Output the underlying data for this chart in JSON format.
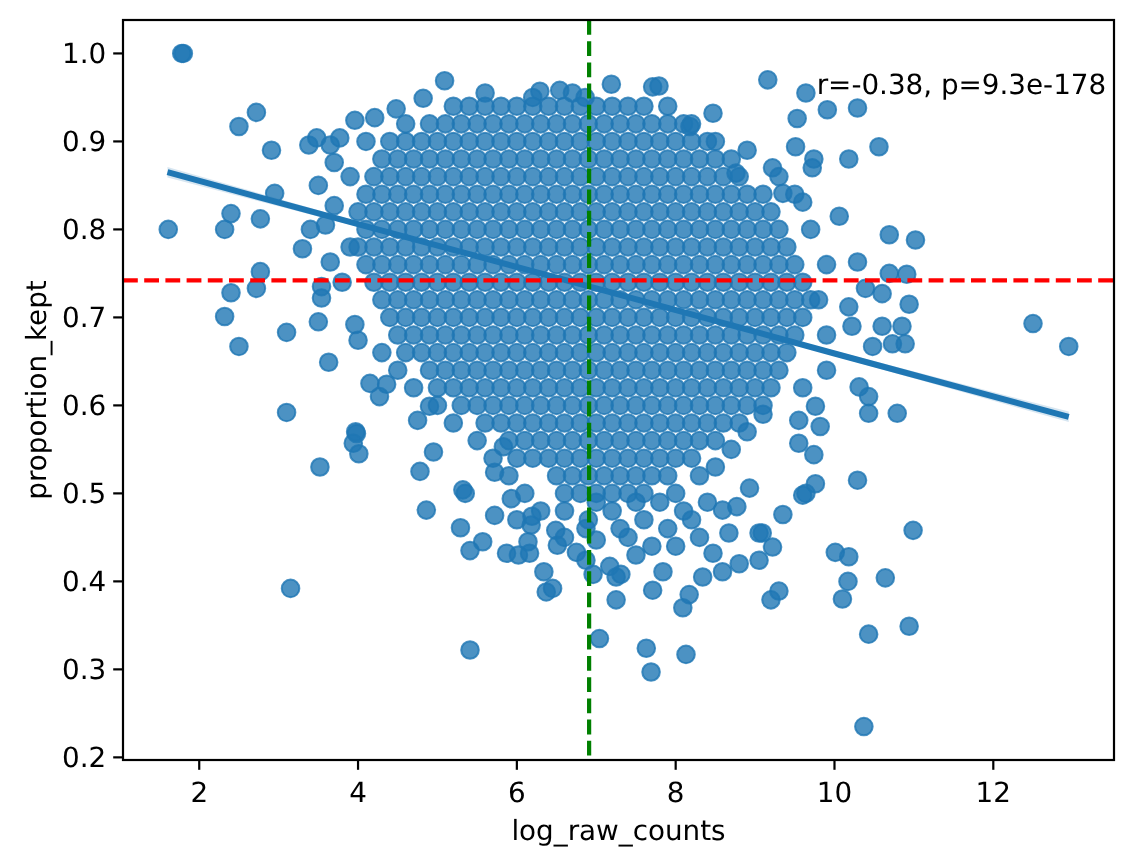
{
  "chart_data": {
    "type": "scatter",
    "xlabel": "log_raw_counts",
    "ylabel": "proportion_kept",
    "xlim": [
      1.04,
      13.52
    ],
    "ylim": [
      0.197,
      1.038
    ],
    "xticks": [
      2,
      4,
      6,
      8,
      10,
      12
    ],
    "yticks": [
      0.2,
      0.3,
      0.4,
      0.5,
      0.6,
      0.7,
      0.8,
      0.9,
      {
        "value": 1,
        "label": "1.0"
      }
    ],
    "annotations": [
      "r=-0.38, p=9.3e-178"
    ],
    "ref_lines": [
      {
        "axis": "y",
        "value": 0.742,
        "color": "#ff0000",
        "line_style": "dashed"
      },
      {
        "axis": "x",
        "value": 6.91,
        "color": "#008000",
        "line_style": "dashed"
      }
    ],
    "series": [
      {
        "color": "#1f77b4",
        "marker": "circle",
        "x": [
          5.4,
          5.6,
          5.8,
          6,
          6.2,
          6.4,
          6.6,
          6.8,
          7,
          7.2,
          7.4,
          7.6,
          4.9,
          5.1,
          5.3,
          5.5,
          5.7,
          5.9,
          6.1,
          6.3,
          6.5,
          6.7,
          6.9,
          7.1,
          7.3,
          7.5,
          7.7,
          7.9,
          8.1,
          4.4,
          4.6,
          4.8,
          5,
          5.2,
          5.4,
          5.6,
          5.8,
          6,
          6.2,
          6.4,
          6.6,
          6.8,
          7,
          7.2,
          7.4,
          7.6,
          7.8,
          8,
          8.2,
          8.4,
          4.3,
          4.5,
          4.7,
          4.9,
          5.1,
          5.3,
          5.5,
          5.7,
          5.9,
          6.1,
          6.3,
          6.5,
          6.7,
          6.9,
          7.1,
          7.3,
          7.5,
          7.7,
          7.9,
          8.1,
          8.3,
          8.5,
          8.7,
          4.2,
          4.4,
          4.6,
          4.8,
          5,
          5.2,
          5.4,
          5.6,
          5.8,
          6,
          6.2,
          6.4,
          6.6,
          6.8,
          7,
          7.2,
          7.4,
          7.6,
          7.8,
          8,
          8.2,
          8.4,
          8.6,
          8.8,
          4.1,
          4.3,
          4.5,
          4.7,
          4.9,
          5.1,
          5.3,
          5.5,
          5.7,
          5.9,
          6.1,
          6.3,
          6.5,
          6.7,
          6.9,
          7.1,
          7.3,
          7.5,
          7.7,
          7.9,
          8.1,
          8.3,
          8.5,
          8.7,
          8.9,
          9.1,
          4,
          4.2,
          4.4,
          4.6,
          4.8,
          5,
          5.2,
          5.4,
          5.6,
          5.8,
          6,
          6.2,
          6.4,
          6.6,
          6.8,
          7,
          7.2,
          7.4,
          7.6,
          7.8,
          8,
          8.2,
          8.4,
          8.6,
          8.8,
          9,
          9.2,
          4.1,
          4.3,
          4.5,
          4.7,
          4.9,
          5.1,
          5.3,
          5.5,
          5.7,
          5.9,
          6.1,
          6.3,
          6.5,
          6.7,
          6.9,
          7.1,
          7.3,
          7.5,
          7.7,
          7.9,
          8.1,
          8.3,
          8.5,
          8.7,
          8.9,
          9.1,
          9.3,
          4,
          4.2,
          4.4,
          4.6,
          4.8,
          5,
          5.2,
          5.4,
          5.6,
          5.8,
          6,
          6.2,
          6.4,
          6.6,
          6.8,
          7,
          7.2,
          7.4,
          7.6,
          7.8,
          8,
          8.2,
          8.4,
          8.6,
          8.8,
          9,
          9.2,
          9.4,
          4.1,
          4.3,
          4.5,
          4.7,
          4.9,
          5.1,
          5.3,
          5.5,
          5.7,
          5.9,
          6.1,
          6.3,
          6.5,
          6.7,
          6.9,
          7.1,
          7.3,
          7.5,
          7.7,
          7.9,
          8.1,
          8.3,
          8.5,
          8.7,
          8.9,
          9.1,
          9.3,
          9.5,
          4.2,
          4.4,
          4.6,
          4.8,
          5,
          5.2,
          5.4,
          5.6,
          5.8,
          6,
          6.2,
          6.4,
          6.6,
          6.8,
          7,
          7.2,
          7.4,
          7.6,
          7.8,
          8,
          8.2,
          8.4,
          8.6,
          8.8,
          9,
          9.2,
          9.4,
          9.6,
          4.3,
          4.5,
          4.7,
          4.9,
          5.1,
          5.3,
          5.5,
          5.7,
          5.9,
          6.1,
          6.3,
          6.5,
          6.7,
          6.9,
          7.1,
          7.3,
          7.5,
          7.7,
          7.9,
          8.1,
          8.3,
          8.5,
          8.7,
          8.9,
          9.1,
          9.3,
          9.5,
          9.7,
          4.4,
          4.6,
          4.8,
          5,
          5.2,
          5.4,
          5.6,
          5.8,
          6,
          6.2,
          6.4,
          6.6,
          6.8,
          7,
          7.2,
          7.4,
          7.6,
          7.8,
          8,
          8.2,
          8.4,
          8.6,
          8.8,
          9,
          9.2,
          9.4,
          9.6,
          4.5,
          4.7,
          4.9,
          5.1,
          5.3,
          5.5,
          5.7,
          5.9,
          6.1,
          6.3,
          6.5,
          6.7,
          6.9,
          7.1,
          7.3,
          7.5,
          7.7,
          7.9,
          8.1,
          8.3,
          8.5,
          8.7,
          8.9,
          9.1,
          9.3,
          9.5,
          4.6,
          4.8,
          5,
          5.2,
          5.4,
          5.6,
          5.8,
          6,
          6.2,
          6.4,
          6.6,
          6.8,
          7,
          7.2,
          7.4,
          7.6,
          7.8,
          8,
          8.2,
          8.4,
          8.6,
          8.8,
          9,
          9.2,
          9.4,
          4.9,
          5.1,
          5.3,
          5.5,
          5.7,
          5.9,
          6.1,
          6.3,
          6.5,
          6.7,
          6.9,
          7.1,
          7.3,
          7.5,
          7.7,
          7.9,
          8.1,
          8.3,
          8.5,
          8.7,
          8.9,
          9.1,
          9.3,
          5,
          5.2,
          5.4,
          5.6,
          5.8,
          6,
          6.2,
          6.4,
          6.6,
          6.8,
          7,
          7.2,
          7.4,
          7.6,
          7.8,
          8,
          8.2,
          8.4,
          8.6,
          8.8,
          9,
          9.2,
          5.3,
          5.5,
          5.7,
          5.9,
          6.1,
          6.3,
          6.5,
          6.7,
          6.9,
          7.1,
          7.3,
          7.5,
          7.7,
          7.9,
          8.1,
          8.3,
          8.5,
          8.7,
          8.9,
          9.1,
          5.6,
          5.8,
          6,
          6.2,
          6.4,
          6.6,
          6.8,
          7,
          7.2,
          7.4,
          7.6,
          7.8,
          8,
          8.2,
          8.4,
          8.6,
          8.8,
          5.9,
          6.1,
          6.3,
          6.5,
          6.7,
          6.9,
          7.1,
          7.3,
          7.5,
          7.7,
          7.9,
          8.1,
          8.3,
          8.5,
          6.2,
          6.4,
          6.6,
          6.8,
          7,
          7.2,
          7.4,
          7.6,
          7.8,
          8,
          8.2,
          6.5,
          6.7,
          6.9,
          7.1,
          7.3,
          7.5,
          7.7,
          7.9,
          6.6,
          6.8,
          7,
          7.2,
          7.4,
          7.6,
          1.78,
          1.8,
          1.61,
          2.5,
          2.72,
          2.91,
          2.4,
          2.32,
          2.77,
          2.95,
          3.3,
          2.77,
          2.72,
          2.4,
          2.32,
          2.5,
          3.1,
          3.1,
          3.38,
          3.48,
          3.65,
          3.77,
          3.96,
          4.21,
          3.7,
          3.5,
          3.4,
          3.59,
          3.7,
          3.65,
          3.54,
          3.54,
          3.5,
          3.63,
          3.96,
          4,
          5.09,
          4.82,
          4.48,
          3.97,
          4.15,
          4.36,
          4.27,
          4.75,
          4.9,
          6.29,
          6.54,
          6.86,
          7.19,
          7.71,
          7.79,
          8.47,
          8.18,
          9.16,
          9.64,
          9.91,
          10.29,
          9.53,
          10.56,
          10.18,
          9.74,
          9.72,
          9.51,
          9.22,
          8.9,
          8.76,
          10.06,
          10.69,
          11.02,
          9.6,
          9.35,
          10.29,
          10.69,
          10.91,
          10.6,
          10.39,
          10.94,
          12.5,
          12.95,
          10.6,
          10.85,
          10.73,
          10.89,
          10.48,
          10.18,
          10.22,
          10.31,
          10.43,
          10.79,
          10.43,
          9.76,
          9.55,
          3.52,
          3.98,
          3.94,
          4.01,
          3.15,
          5.41,
          4.95,
          4.78,
          4.86,
          5.32,
          5.35,
          5.29,
          5.41,
          5.57,
          5.72,
          5.72,
          5.93,
          5.83,
          5.87,
          6.02,
          6.16,
          6.14,
          6.34,
          6.37,
          6.45,
          7.04,
          6.18,
          6.19,
          6.49,
          6.51,
          6.75,
          6.87,
          7,
          6.87,
          7.17,
          7.25,
          7.25,
          7.63,
          7.69,
          8.13,
          10.37,
          10.43,
          10.94,
          10.01,
          10.18,
          10.64,
          10.17,
          10.1,
          10.99,
          10.29,
          9.2,
          9.3,
          7.71,
          8.09,
          8.17,
          6.96,
          7.31,
          7.84,
          8.34,
          8.59,
          8.8,
          9.05,
          9.22,
          9.05,
          9.64,
          9.76,
          9.6,
          9.35,
          8.93,
          9.55,
          9.74,
          9.82,
          8.77,
          8.59,
          8.67,
          8.47,
          9.09,
          7.6,
          7.9,
          8.2,
          7.4,
          7.7,
          8,
          8.3,
          7.5,
          6.6,
          6.9,
          7.2,
          7,
          7.5,
          7.8,
          8,
          8.3,
          8.5,
          8.7,
          8.9,
          9.1,
          5.9,
          6.1,
          6.3,
          6,
          6.6,
          8.4,
          8.1,
          7.3,
          9.8,
          9.9,
          9.9,
          9.7,
          9.5,
          9.9,
          9.6,
          9.3,
          3.9,
          3.8,
          3.9,
          4.1,
          4.3,
          4.5,
          4.7,
          5,
          5.2,
          5.5,
          5.7,
          6,
          4.6,
          5.2,
          8.2,
          8.5,
          6.7,
          7.9,
          5.6,
          6.2
        ],
        "values": [
          0.94,
          0.94,
          0.94,
          0.94,
          0.94,
          0.94,
          0.94,
          0.94,
          0.94,
          0.94,
          0.94,
          0.94,
          0.92,
          0.92,
          0.92,
          0.92,
          0.92,
          0.92,
          0.92,
          0.92,
          0.92,
          0.92,
          0.92,
          0.92,
          0.92,
          0.92,
          0.92,
          0.92,
          0.92,
          0.9,
          0.9,
          0.9,
          0.9,
          0.9,
          0.9,
          0.9,
          0.9,
          0.9,
          0.9,
          0.9,
          0.9,
          0.9,
          0.9,
          0.9,
          0.9,
          0.9,
          0.9,
          0.9,
          0.9,
          0.9,
          0.88,
          0.88,
          0.88,
          0.88,
          0.88,
          0.88,
          0.88,
          0.88,
          0.88,
          0.88,
          0.88,
          0.88,
          0.88,
          0.88,
          0.88,
          0.88,
          0.88,
          0.88,
          0.88,
          0.88,
          0.88,
          0.88,
          0.88,
          0.86,
          0.86,
          0.86,
          0.86,
          0.86,
          0.86,
          0.86,
          0.86,
          0.86,
          0.86,
          0.86,
          0.86,
          0.86,
          0.86,
          0.86,
          0.86,
          0.86,
          0.86,
          0.86,
          0.86,
          0.86,
          0.86,
          0.86,
          0.86,
          0.84,
          0.84,
          0.84,
          0.84,
          0.84,
          0.84,
          0.84,
          0.84,
          0.84,
          0.84,
          0.84,
          0.84,
          0.84,
          0.84,
          0.84,
          0.84,
          0.84,
          0.84,
          0.84,
          0.84,
          0.84,
          0.84,
          0.84,
          0.84,
          0.84,
          0.84,
          0.82,
          0.82,
          0.82,
          0.82,
          0.82,
          0.82,
          0.82,
          0.82,
          0.82,
          0.82,
          0.82,
          0.82,
          0.82,
          0.82,
          0.82,
          0.82,
          0.82,
          0.82,
          0.82,
          0.82,
          0.82,
          0.82,
          0.82,
          0.82,
          0.82,
          0.82,
          0.82,
          0.8,
          0.8,
          0.8,
          0.8,
          0.8,
          0.8,
          0.8,
          0.8,
          0.8,
          0.8,
          0.8,
          0.8,
          0.8,
          0.8,
          0.8,
          0.8,
          0.8,
          0.8,
          0.8,
          0.8,
          0.8,
          0.8,
          0.8,
          0.8,
          0.8,
          0.8,
          0.8,
          0.78,
          0.78,
          0.78,
          0.78,
          0.78,
          0.78,
          0.78,
          0.78,
          0.78,
          0.78,
          0.78,
          0.78,
          0.78,
          0.78,
          0.78,
          0.78,
          0.78,
          0.78,
          0.78,
          0.78,
          0.78,
          0.78,
          0.78,
          0.78,
          0.78,
          0.78,
          0.78,
          0.78,
          0.76,
          0.76,
          0.76,
          0.76,
          0.76,
          0.76,
          0.76,
          0.76,
          0.76,
          0.76,
          0.76,
          0.76,
          0.76,
          0.76,
          0.76,
          0.76,
          0.76,
          0.76,
          0.76,
          0.76,
          0.76,
          0.76,
          0.76,
          0.76,
          0.76,
          0.76,
          0.76,
          0.76,
          0.74,
          0.74,
          0.74,
          0.74,
          0.74,
          0.74,
          0.74,
          0.74,
          0.74,
          0.74,
          0.74,
          0.74,
          0.74,
          0.74,
          0.74,
          0.74,
          0.74,
          0.74,
          0.74,
          0.74,
          0.74,
          0.74,
          0.74,
          0.74,
          0.74,
          0.74,
          0.74,
          0.74,
          0.72,
          0.72,
          0.72,
          0.72,
          0.72,
          0.72,
          0.72,
          0.72,
          0.72,
          0.72,
          0.72,
          0.72,
          0.72,
          0.72,
          0.72,
          0.72,
          0.72,
          0.72,
          0.72,
          0.72,
          0.72,
          0.72,
          0.72,
          0.72,
          0.72,
          0.72,
          0.72,
          0.72,
          0.7,
          0.7,
          0.7,
          0.7,
          0.7,
          0.7,
          0.7,
          0.7,
          0.7,
          0.7,
          0.7,
          0.7,
          0.7,
          0.7,
          0.7,
          0.7,
          0.7,
          0.7,
          0.7,
          0.7,
          0.7,
          0.7,
          0.7,
          0.7,
          0.7,
          0.7,
          0.7,
          0.68,
          0.68,
          0.68,
          0.68,
          0.68,
          0.68,
          0.68,
          0.68,
          0.68,
          0.68,
          0.68,
          0.68,
          0.68,
          0.68,
          0.68,
          0.68,
          0.68,
          0.68,
          0.68,
          0.68,
          0.68,
          0.68,
          0.68,
          0.68,
          0.68,
          0.68,
          0.66,
          0.66,
          0.66,
          0.66,
          0.66,
          0.66,
          0.66,
          0.66,
          0.66,
          0.66,
          0.66,
          0.66,
          0.66,
          0.66,
          0.66,
          0.66,
          0.66,
          0.66,
          0.66,
          0.66,
          0.66,
          0.66,
          0.66,
          0.66,
          0.66,
          0.64,
          0.64,
          0.64,
          0.64,
          0.64,
          0.64,
          0.64,
          0.64,
          0.64,
          0.64,
          0.64,
          0.64,
          0.64,
          0.64,
          0.64,
          0.64,
          0.64,
          0.64,
          0.64,
          0.64,
          0.64,
          0.64,
          0.64,
          0.62,
          0.62,
          0.62,
          0.62,
          0.62,
          0.62,
          0.62,
          0.62,
          0.62,
          0.62,
          0.62,
          0.62,
          0.62,
          0.62,
          0.62,
          0.62,
          0.62,
          0.62,
          0.62,
          0.62,
          0.62,
          0.62,
          0.6,
          0.6,
          0.6,
          0.6,
          0.6,
          0.6,
          0.6,
          0.6,
          0.6,
          0.6,
          0.6,
          0.6,
          0.6,
          0.6,
          0.6,
          0.6,
          0.6,
          0.6,
          0.6,
          0.6,
          0.58,
          0.58,
          0.58,
          0.58,
          0.58,
          0.58,
          0.58,
          0.58,
          0.58,
          0.58,
          0.58,
          0.58,
          0.58,
          0.58,
          0.58,
          0.58,
          0.58,
          0.56,
          0.56,
          0.56,
          0.56,
          0.56,
          0.56,
          0.56,
          0.56,
          0.56,
          0.56,
          0.56,
          0.56,
          0.56,
          0.56,
          0.54,
          0.54,
          0.54,
          0.54,
          0.54,
          0.54,
          0.54,
          0.54,
          0.54,
          0.54,
          0.54,
          0.52,
          0.52,
          0.52,
          0.52,
          0.52,
          0.52,
          0.52,
          0.52,
          0.5,
          0.5,
          0.5,
          0.5,
          0.5,
          0.5,
          1,
          1,
          0.8,
          0.917,
          0.933,
          0.89,
          0.818,
          0.8,
          0.812,
          0.841,
          0.778,
          0.752,
          0.733,
          0.728,
          0.701,
          0.667,
          0.683,
          0.592,
          0.896,
          0.904,
          0.896,
          0.904,
          0.924,
          0.927,
          0.876,
          0.85,
          0.8,
          0.805,
          0.827,
          0.763,
          0.735,
          0.722,
          0.695,
          0.649,
          0.692,
          0.674,
          0.969,
          0.949,
          0.937,
          0.57,
          0.625,
          0.624,
          0.61,
          0.583,
          0.599,
          0.957,
          0.958,
          0.95,
          0.965,
          0.962,
          0.963,
          0.932,
          0.917,
          0.97,
          0.955,
          0.936,
          0.938,
          0.926,
          0.894,
          0.88,
          0.88,
          0.87,
          0.894,
          0.87,
          0.89,
          0.864,
          0.815,
          0.794,
          0.788,
          0.831,
          0.841,
          0.763,
          0.75,
          0.749,
          0.727,
          0.733,
          0.715,
          0.693,
          0.667,
          0.69,
          0.69,
          0.67,
          0.67,
          0.667,
          0.712,
          0.69,
          0.621,
          0.61,
          0.591,
          0.591,
          0.599,
          0.583,
          0.53,
          0.568,
          0.557,
          0.545,
          0.392,
          0.322,
          0.547,
          0.525,
          0.481,
          0.504,
          0.5,
          0.461,
          0.435,
          0.445,
          0.524,
          0.475,
          0.494,
          0.553,
          0.432,
          0.43,
          0.432,
          0.445,
          0.411,
          0.388,
          0.392,
          0.335,
          0.464,
          0.474,
          0.458,
          0.441,
          0.433,
          0.424,
          0.447,
          0.46,
          0.417,
          0.405,
          0.379,
          0.324,
          0.297,
          0.317,
          0.235,
          0.34,
          0.349,
          0.433,
          0.428,
          0.404,
          0.4,
          0.38,
          0.458,
          0.515,
          0.379,
          0.389,
          0.39,
          0.37,
          0.385,
          0.408,
          0.408,
          0.411,
          0.405,
          0.411,
          0.42,
          0.424,
          0.439,
          0.455,
          0.5,
          0.511,
          0.498,
          0.476,
          0.506,
          0.557,
          0.544,
          0.576,
          0.485,
          0.481,
          0.455,
          0.432,
          0.455,
          0.47,
          0.46,
          0.47,
          0.45,
          0.44,
          0.44,
          0.45,
          0.43,
          0.48,
          0.47,
          0.48,
          0.49,
          0.49,
          0.49,
          0.5,
          0.52,
          0.53,
          0.55,
          0.57,
          0.59,
          0.52,
          0.5,
          0.48,
          0.47,
          0.45,
          0.49,
          0.48,
          0.46,
          0.72,
          0.68,
          0.76,
          0.8,
          0.84,
          0.64,
          0.62,
          0.86,
          0.78,
          0.74,
          0.86,
          0.9,
          0.66,
          0.64,
          0.62,
          0.6,
          0.58,
          0.56,
          0.54,
          0.54,
          0.92,
          0.94,
          0.92,
          0.9,
          0.955,
          0.94,
          0.955,
          0.95
        ]
      },
      {
        "type": "line",
        "color": "#1f77b4",
        "x": [
          1.6,
          4,
          7,
          10,
          12.95
        ],
        "values": [
          0.865,
          0.806,
          0.733,
          0.659,
          0.587
        ],
        "lower": [
          0.859,
          0.803,
          0.732,
          0.656,
          0.581
        ],
        "upper": [
          0.871,
          0.809,
          0.734,
          0.662,
          0.593
        ]
      }
    ]
  }
}
